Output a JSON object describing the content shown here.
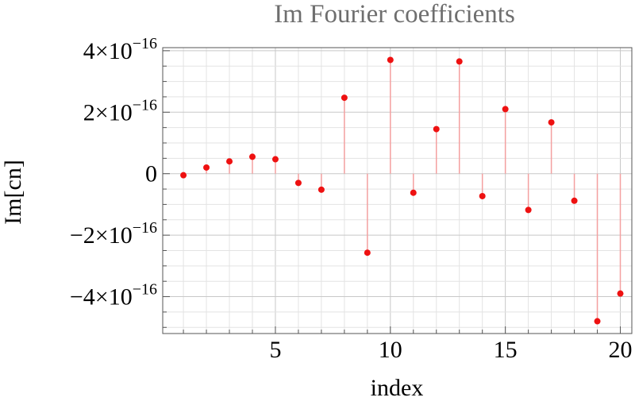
{
  "chart_data": {
    "type": "scatter",
    "style": "stem",
    "title": "Im Fourier coefficients",
    "xlabel": "index",
    "ylabel": "Im[cn]",
    "xlim": [
      0.1,
      20.5
    ],
    "ylim": [
      -5.2e-16,
      4.1e-16
    ],
    "grid": true,
    "legend": "none",
    "color": "#ee1111",
    "stem_color": "#f4a0a0",
    "x_ticks": [
      {
        "value": 5,
        "label": "5"
      },
      {
        "value": 10,
        "label": "10"
      },
      {
        "value": 15,
        "label": "15"
      },
      {
        "value": 20,
        "label": "20"
      }
    ],
    "y_ticks": [
      {
        "value": 4e-16,
        "mantissa": "4",
        "base": "×10",
        "exp": "−16"
      },
      {
        "value": 2e-16,
        "mantissa": "2",
        "base": "×10",
        "exp": "−16"
      },
      {
        "value": 0,
        "mantissa": "0",
        "base": "",
        "exp": ""
      },
      {
        "value": -2e-16,
        "mantissa": "−2",
        "base": "×10",
        "exp": "−16"
      },
      {
        "value": -4e-16,
        "mantissa": "−4",
        "base": "×10",
        "exp": "−16"
      }
    ],
    "x": [
      1,
      2,
      3,
      4,
      5,
      6,
      7,
      8,
      9,
      10,
      11,
      12,
      13,
      14,
      15,
      16,
      17,
      18,
      19,
      20
    ],
    "values": [
      -5e-18,
      2e-17,
      4e-17,
      5.5e-17,
      4.7e-17,
      -3e-17,
      -5.2e-17,
      2.47e-16,
      -2.57e-16,
      3.7e-16,
      -6.2e-17,
      1.45e-16,
      3.65e-16,
      -7.3e-17,
      2.1e-16,
      -1.18e-16,
      1.67e-16,
      -8.8e-17,
      -4.8e-16,
      -3.9e-16
    ]
  }
}
